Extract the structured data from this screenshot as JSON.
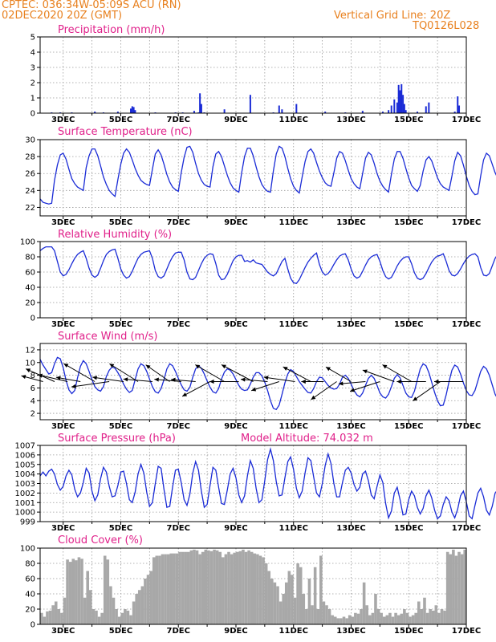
{
  "header": {
    "station": "CPTEC:   036:34W-05:09S   ACU (RN)",
    "date": "02DEC2020 20Z (GMT)",
    "grid_note": "Vertical Grid Line: 20Z",
    "run_code": "TQ0126L028"
  },
  "colors": {
    "header": "#e8801e",
    "title": "#e0208a",
    "line": "#1a2bd6",
    "cloud": "#a8a8a8",
    "wind_arrow": "#000000"
  },
  "chart_data": [
    {
      "name": "precipitation",
      "type": "bar",
      "title": "Precipitation (mm/h)",
      "xlabels": [
        "3DEC",
        "5DEC",
        "7DEC",
        "9DEC",
        "11DEC",
        "13DEC",
        "15DEC",
        "17DEC"
      ],
      "xlim_day": [
        2.2,
        17.0
      ],
      "ylim": [
        0,
        5
      ],
      "yticks": [
        0,
        1,
        2,
        3,
        4,
        5
      ],
      "x_day": [
        2.6,
        2.9,
        3.3,
        4.1,
        4.4,
        4.9,
        5.35,
        5.4,
        5.45,
        5.5,
        6.2,
        6.9,
        7.15,
        7.55,
        7.7,
        7.75,
        7.8,
        7.9,
        8.6,
        9.5,
        10.3,
        10.5,
        10.6,
        11.1,
        12.1,
        12.8,
        13.4,
        14.1,
        14.3,
        14.4,
        14.5,
        14.6,
        14.65,
        14.7,
        14.75,
        14.8,
        14.85,
        14.9,
        15.3,
        15.6,
        15.7,
        16.6,
        16.7,
        16.75
      ],
      "values": [
        0.05,
        0.05,
        0.05,
        0.1,
        0.05,
        0.1,
        0.3,
        0.45,
        0.4,
        0.2,
        0.05,
        0.05,
        0.05,
        0.15,
        0.05,
        1.3,
        0.6,
        0.05,
        0.25,
        1.2,
        0.05,
        0.5,
        0.25,
        0.6,
        0.1,
        0.05,
        0.15,
        0.1,
        0.2,
        0.5,
        0.9,
        0.7,
        1.85,
        1.5,
        1.9,
        1.2,
        0.6,
        0.2,
        0.1,
        0.45,
        0.7,
        0.1,
        1.1,
        0.5
      ]
    },
    {
      "name": "temperature",
      "type": "line",
      "title": "Surface Temperature (nC)",
      "xlabels": [
        "3DEC",
        "5DEC",
        "7DEC",
        "9DEC",
        "11DEC",
        "13DEC",
        "15DEC",
        "17DEC"
      ],
      "xlim_day": [
        2.2,
        17.0
      ],
      "ylim": [
        21,
        30
      ],
      "yticks": [
        22,
        24,
        26,
        28,
        30
      ],
      "start_day": 2.2,
      "step_day": 0.1,
      "values": [
        23.0,
        22.6,
        22.5,
        22.4,
        22.5,
        25.2,
        27.0,
        28.2,
        28.4,
        27.7,
        26.5,
        25.4,
        24.8,
        24.4,
        24.2,
        24.0,
        26.7,
        28.1,
        28.9,
        28.9,
        28.1,
        26.9,
        25.6,
        24.7,
        24.0,
        23.6,
        23.3,
        25.3,
        27.1,
        28.4,
        28.9,
        28.5,
        27.6,
        26.6,
        25.8,
        25.2,
        24.9,
        24.7,
        24.6,
        26.5,
        28.3,
        28.8,
        28.2,
        27.1,
        25.9,
        25.0,
        24.4,
        24.1,
        23.9,
        26.1,
        27.9,
        29.1,
        29.2,
        28.5,
        27.2,
        26.0,
        25.2,
        24.7,
        24.5,
        24.4,
        26.8,
        28.3,
        28.6,
        28.0,
        26.9,
        25.8,
        24.9,
        24.3,
        24.0,
        23.8,
        26.1,
        28.0,
        29.0,
        29.0,
        28.1,
        26.8,
        25.6,
        24.7,
        24.2,
        23.9,
        23.8,
        26.3,
        28.3,
        29.2,
        29.0,
        28.0,
        26.6,
        25.4,
        24.5,
        24.0,
        23.7,
        25.6,
        27.4,
        28.6,
        28.9,
        28.4,
        27.3,
        26.3,
        25.5,
        24.9,
        24.6,
        24.5,
        26.1,
        27.8,
        28.6,
        28.4,
        27.5,
        26.4,
        25.4,
        24.8,
        24.4,
        24.2,
        26.0,
        27.8,
        28.5,
        28.2,
        27.2,
        26.0,
        25.1,
        24.5,
        24.1,
        23.8,
        25.9,
        27.7,
        28.6,
        28.6,
        27.8,
        26.6,
        25.5,
        24.6,
        24.2,
        23.9,
        24.6,
        26.3,
        27.6,
        28.0,
        27.5,
        26.5,
        25.5,
        24.8,
        24.4,
        24.2,
        24.0,
        25.7,
        27.5,
        28.5,
        28.1,
        27.0,
        25.7,
        24.6,
        23.9,
        23.5,
        23.6,
        25.7,
        27.6,
        28.4,
        28.1,
        27.1,
        26.1,
        25.4,
        25.2,
        26.3,
        27.2,
        27.3,
        26.8,
        26.0,
        25.5
      ]
    },
    {
      "name": "humidity",
      "type": "line",
      "title": "Relative Humidity (%)",
      "xlabels": [
        "3DEC",
        "5DEC",
        "7DEC",
        "9DEC",
        "11DEC",
        "13DEC",
        "15DEC",
        "17DEC"
      ],
      "xlim_day": [
        2.2,
        17.0
      ],
      "ylim": [
        0,
        100
      ],
      "yticks": [
        0,
        20,
        40,
        60,
        80,
        100
      ],
      "start_day": 2.2,
      "step_day": 0.1,
      "values": [
        88,
        91,
        93,
        93,
        93,
        88,
        74,
        60,
        55,
        57,
        63,
        71,
        78,
        83,
        86,
        88,
        78,
        65,
        56,
        53,
        56,
        65,
        75,
        83,
        87,
        89,
        90,
        78,
        64,
        56,
        52,
        54,
        61,
        70,
        78,
        83,
        86,
        87,
        88,
        78,
        62,
        54,
        52,
        55,
        64,
        73,
        80,
        85,
        86,
        86,
        76,
        60,
        51,
        50,
        53,
        62,
        71,
        78,
        82,
        84,
        83,
        71,
        56,
        50,
        51,
        57,
        66,
        75,
        80,
        82,
        82,
        74,
        75,
        73,
        76,
        72,
        71,
        70,
        65,
        60,
        57,
        55,
        58,
        66,
        74,
        78,
        64,
        52,
        46,
        45,
        50,
        58,
        66,
        73,
        78,
        82,
        85,
        70,
        60,
        56,
        58,
        63,
        70,
        76,
        81,
        83,
        84,
        76,
        64,
        55,
        52,
        54,
        61,
        69,
        76,
        80,
        82,
        83,
        74,
        62,
        54,
        51,
        53,
        60,
        68,
        74,
        78,
        80,
        80,
        71,
        59,
        52,
        50,
        52,
        58,
        66,
        73,
        78,
        81,
        82,
        84,
        74,
        62,
        56,
        55,
        58,
        64,
        71,
        77,
        81,
        83,
        84,
        80,
        66,
        56,
        55,
        58,
        68,
        78,
        84,
        86,
        87,
        87,
        88,
        88,
        84,
        71,
        60,
        56,
        57,
        62,
        68,
        72,
        71,
        66,
        64,
        68,
        74
      ]
    },
    {
      "name": "wind",
      "type": "line",
      "title": "Surface Wind (m/s)",
      "xlabels": [
        "3DEC",
        "5DEC",
        "7DEC",
        "9DEC",
        "11DEC",
        "13DEC",
        "15DEC",
        "17DEC"
      ],
      "xlim_day": [
        2.2,
        17.0
      ],
      "ylim": [
        1,
        13
      ],
      "yticks": [
        2,
        4,
        6,
        8,
        10,
        12
      ],
      "start_day": 2.2,
      "step_day": 0.1,
      "values": [
        10.5,
        9.6,
        8.9,
        8.2,
        8.4,
        9.8,
        10.8,
        10.6,
        9.2,
        7.2,
        5.7,
        5.1,
        5.6,
        7.6,
        9.4,
        10.3,
        9.8,
        8.6,
        7.3,
        6.2,
        5.7,
        5.5,
        6.2,
        7.8,
        8.8,
        9.3,
        9.1,
        8.4,
        7.6,
        6.6,
        5.8,
        5.3,
        5.6,
        7.3,
        9.0,
        9.8,
        9.5,
        8.6,
        7.4,
        6.2,
        5.4,
        5.2,
        5.9,
        7.3,
        9.0,
        9.8,
        9.5,
        8.6,
        7.5,
        6.5,
        5.7,
        5.5,
        6.1,
        7.7,
        9.0,
        9.5,
        9.1,
        8.2,
        7.1,
        6.1,
        5.4,
        5.2,
        5.9,
        7.4,
        8.5,
        9.0,
        8.8,
        8.2,
        7.3,
        6.4,
        5.8,
        5.6,
        5.7,
        6.6,
        7.7,
        8.4,
        8.4,
        7.9,
        6.9,
        5.6,
        4.0,
        2.8,
        2.6,
        3.3,
        5.0,
        6.8,
        8.2,
        8.9,
        8.6,
        7.8,
        7.0,
        6.4,
        5.8,
        5.3,
        5.2,
        5.9,
        7.0,
        7.7,
        7.6,
        7.0,
        6.4,
        6.0,
        5.8,
        5.9,
        6.6,
        7.7,
        8.0,
        7.5,
        6.6,
        5.6,
        4.9,
        4.6,
        5.2,
        6.4,
        7.5,
        8.0,
        7.5,
        6.4,
        5.2,
        4.6,
        4.4,
        5.0,
        6.2,
        7.5,
        8.1,
        7.6,
        6.4,
        5.2,
        4.6,
        4.5,
        5.5,
        7.3,
        9.0,
        9.8,
        9.5,
        8.4,
        6.9,
        5.3,
        4.0,
        3.2,
        3.3,
        4.9,
        7.0,
        8.8,
        9.6,
        9.3,
        8.2,
        6.8,
        5.6,
        4.9,
        4.8,
        5.6,
        7.1,
        8.6,
        9.4,
        9.0,
        8.0,
        6.5,
        5.0,
        4.2,
        4.2,
        5.6,
        7.9,
        9.9,
        11.2,
        11.4,
        10.4,
        8.9,
        8.3,
        8.2,
        9.3,
        10.5,
        11.0,
        10.5,
        9.6,
        8.8
      ],
      "arrows": [
        {
          "day": 2.3,
          "deg": 15,
          "len": 1.0
        },
        {
          "day": 2.7,
          "deg": 24,
          "len": 1.4
        },
        {
          "day": 3.15,
          "deg": 13,
          "len": 1.35
        },
        {
          "day": 3.6,
          "deg": 10,
          "len": 1.1
        },
        {
          "day": 4.1,
          "deg": 30,
          "len": 1.6
        },
        {
          "day": 4.6,
          "deg": -8,
          "len": 1.7
        },
        {
          "day": 5.1,
          "deg": 8,
          "len": 1.4
        },
        {
          "day": 5.6,
          "deg": 32,
          "len": 1.5
        },
        {
          "day": 6.1,
          "deg": 5,
          "len": 1.3
        },
        {
          "day": 6.7,
          "deg": 35,
          "len": 1.3
        },
        {
          "day": 7.1,
          "deg": 5,
          "len": 1.2
        },
        {
          "day": 7.6,
          "deg": 5,
          "len": 1.1
        },
        {
          "day": 8.1,
          "deg": -28,
          "len": 1.4
        },
        {
          "day": 8.6,
          "deg": 30,
          "len": 1.5
        },
        {
          "day": 9.1,
          "deg": 0,
          "len": 1.3
        },
        {
          "day": 9.6,
          "deg": 28,
          "len": 1.6
        },
        {
          "day": 10.1,
          "deg": 5,
          "len": 1.2
        },
        {
          "day": 10.5,
          "deg": -18,
          "len": 1.3
        },
        {
          "day": 11.05,
          "deg": 8,
          "len": 1.4
        },
        {
          "day": 11.6,
          "deg": 28,
          "len": 1.4
        },
        {
          "day": 12.05,
          "deg": 0,
          "len": 1.0
        },
        {
          "day": 12.5,
          "deg": -35,
          "len": 1.4
        },
        {
          "day": 13.0,
          "deg": 30,
          "len": 1.3
        },
        {
          "day": 13.5,
          "deg": -5,
          "len": 1.2
        },
        {
          "day": 14.0,
          "deg": -18,
          "len": 1.4
        },
        {
          "day": 14.5,
          "deg": 20,
          "len": 1.5
        },
        {
          "day": 15.1,
          "deg": 30,
          "len": 1.5
        },
        {
          "day": 15.6,
          "deg": 0,
          "len": 1.3
        },
        {
          "day": 16.1,
          "deg": -35,
          "len": 1.5
        },
        {
          "day": 16.9,
          "deg": 0,
          "len": 1.3
        }
      ]
    },
    {
      "name": "pressure",
      "type": "line",
      "title": "Surface Pressure (hPa)",
      "subtitle": "Model Altitude: 74.032 m",
      "xlabels": [
        "3DEC",
        "5DEC",
        "7DEC",
        "9DEC",
        "11DEC",
        "13DEC",
        "15DEC",
        "17DEC"
      ],
      "xlim_day": [
        2.2,
        17.0
      ],
      "ylim": [
        999,
        1007
      ],
      "yticks": [
        999,
        1000,
        1001,
        1002,
        1003,
        1004,
        1005,
        1006,
        1007
      ],
      "start_day": 2.2,
      "step_day": 0.1,
      "values": [
        1003.8,
        1004.2,
        1003.8,
        1004.3,
        1004.5,
        1004.0,
        1002.9,
        1002.3,
        1002.7,
        1003.8,
        1004.4,
        1003.9,
        1002.4,
        1001.6,
        1002.0,
        1003.1,
        1004.6,
        1004.1,
        1002.2,
        1001.2,
        1001.8,
        1003.5,
        1004.7,
        1004.2,
        1002.7,
        1001.6,
        1001.7,
        1002.8,
        1004.2,
        1004.3,
        1003.0,
        1001.3,
        1001.0,
        1002.1,
        1004.0,
        1005.0,
        1004.1,
        1002.1,
        1000.6,
        1001.0,
        1003.0,
        1004.8,
        1004.6,
        1002.4,
        1000.5,
        1000.6,
        1002.6,
        1004.4,
        1004.5,
        1003.1,
        1001.3,
        1000.7,
        1001.9,
        1004.1,
        1005.3,
        1004.4,
        1002.2,
        1000.5,
        1000.8,
        1002.8,
        1004.7,
        1004.4,
        1002.6,
        1000.9,
        1000.8,
        1002.3,
        1004.0,
        1004.6,
        1003.6,
        1001.8,
        1001.0,
        1001.7,
        1003.8,
        1005.4,
        1004.6,
        1002.5,
        1001.0,
        1001.3,
        1003.3,
        1005.5,
        1006.6,
        1005.4,
        1003.2,
        1001.7,
        1001.8,
        1003.6,
        1005.3,
        1005.8,
        1004.5,
        1002.5,
        1001.5,
        1002.2,
        1004.1,
        1005.7,
        1005.4,
        1003.7,
        1002.0,
        1001.6,
        1003.0,
        1004.9,
        1006.1,
        1005.1,
        1003.0,
        1001.6,
        1001.6,
        1003.1,
        1004.4,
        1004.7,
        1004.1,
        1002.9,
        1002.2,
        1002.6,
        1004.0,
        1004.3,
        1003.3,
        1001.8,
        1001.4,
        1002.7,
        1003.9,
        1003.1,
        1000.9,
        999.4,
        1000.1,
        1002.0,
        1002.6,
        1001.3,
        999.7,
        999.8,
        1001.3,
        1002.2,
        1001.7,
        1000.5,
        999.8,
        1000.4,
        1001.7,
        1002.3,
        1001.5,
        1000.2,
        999.3,
        999.6,
        1000.8,
        1001.6,
        1001.2,
        1000.0,
        999.4,
        1000.3,
        1001.7,
        1002.2,
        1001.1,
        999.6,
        999.3,
        1000.7,
        1002.0,
        1002.5,
        1001.6,
        1000.2,
        999.7,
        1000.6,
        1002.0,
        1002.4,
        1001.3,
        1000.0,
        999.5,
        1000.0,
        1001.0,
        1001.4,
        1000.4,
        999.3,
        999.6,
        1000.3
      ]
    },
    {
      "name": "cloud",
      "type": "area",
      "title": "Cloud Cover (%)",
      "xlabels": [
        "3DEC",
        "5DEC",
        "7DEC",
        "9DEC",
        "11DEC",
        "13DEC",
        "15DEC",
        "17DEC"
      ],
      "xlim_day": [
        2.2,
        17.0
      ],
      "ylim": [
        0,
        100
      ],
      "yticks": [
        0,
        20,
        40,
        60,
        80,
        100
      ],
      "start_day": 2.2,
      "step_day": 0.1,
      "values": [
        15,
        10,
        17,
        18,
        25,
        30,
        20,
        15,
        35,
        85,
        82,
        86,
        84,
        88,
        86,
        35,
        70,
        45,
        20,
        18,
        10,
        15,
        90,
        85,
        50,
        35,
        20,
        10,
        15,
        20,
        18,
        12,
        30,
        40,
        45,
        50,
        60,
        65,
        70,
        88,
        90,
        90,
        92,
        92,
        92,
        93,
        93,
        93,
        95,
        95,
        95,
        95,
        97,
        98,
        97,
        92,
        95,
        98,
        97,
        96,
        98,
        97,
        95,
        88,
        92,
        95,
        92,
        94,
        95,
        96,
        98,
        95,
        97,
        95,
        93,
        92,
        90,
        88,
        80,
        70,
        60,
        55,
        50,
        30,
        40,
        55,
        70,
        65,
        35,
        80,
        75,
        40,
        20,
        60,
        25,
        75,
        20,
        90,
        30,
        25,
        20,
        12,
        10,
        8,
        8,
        10,
        8,
        12,
        10,
        15,
        14,
        20,
        55,
        25,
        12,
        15,
        40,
        20,
        15,
        10,
        12,
        15,
        10,
        15,
        12,
        14,
        20,
        15,
        10,
        12,
        15,
        30,
        20,
        35,
        15,
        20,
        18,
        25,
        15,
        20,
        18,
        95,
        92,
        98,
        90,
        95,
        92,
        98,
        96,
        95,
        94,
        92,
        90,
        88,
        86,
        75,
        60,
        50,
        55,
        40,
        30,
        20,
        35,
        60,
        45,
        20,
        40,
        55,
        30
      ]
    }
  ]
}
